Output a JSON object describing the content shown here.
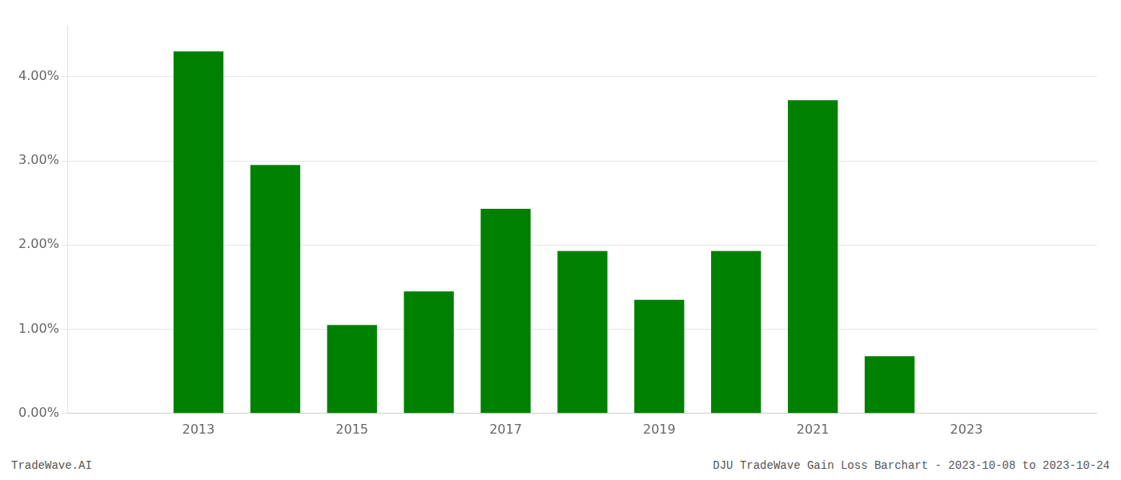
{
  "chart_data": {
    "type": "bar",
    "x": [
      2013,
      2014,
      2015,
      2016,
      2017,
      2018,
      2019,
      2020,
      2021,
      2022,
      2023
    ],
    "values": [
      0.043,
      0.0295,
      0.0105,
      0.0145,
      0.0243,
      0.0193,
      0.0135,
      0.0193,
      0.0372,
      0.0068,
      0.0
    ],
    "color": "#008000",
    "xlim": [
      2011.3,
      2024.7
    ],
    "xticks": [
      2013,
      2015,
      2017,
      2019,
      2021,
      2023
    ],
    "ylim": [
      0.0,
      0.046
    ],
    "yticks": [
      {
        "value": 0.0,
        "label": "0.00%"
      },
      {
        "value": 0.01,
        "label": "1.00%"
      },
      {
        "value": 0.02,
        "label": "2.00%"
      },
      {
        "value": 0.03,
        "label": "3.00%"
      },
      {
        "value": 0.04,
        "label": "4.00%"
      }
    ],
    "grid": "y",
    "annotations": [
      "TradeWave.AI",
      "DJU TradeWave Gain Loss Barchart - 2023-10-08 to 2023-10-24"
    ]
  }
}
